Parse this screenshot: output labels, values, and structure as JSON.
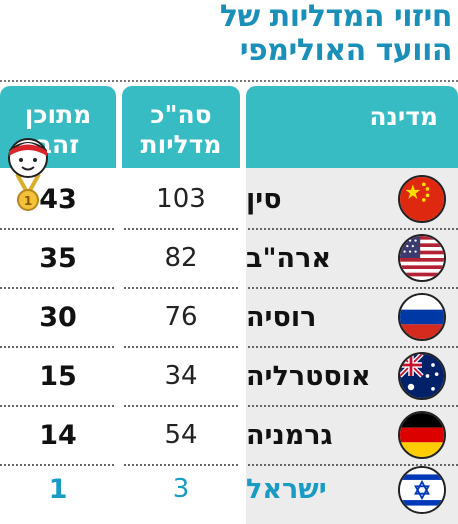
{
  "title": {
    "line1": "חיזוי המדליות של",
    "line2": "הוועד האולימפי"
  },
  "headers": {
    "country": "מדינה",
    "total_line1": "סה\"כ",
    "total_line2": "מדליות",
    "gold_line1": "מתוכן",
    "gold_line2": "זהב"
  },
  "rows": [
    {
      "country": "סין",
      "total": "103",
      "gold": "43",
      "flag": "china-flag"
    },
    {
      "country": "ארה\"ב",
      "total": "82",
      "gold": "35",
      "flag": "usa-flag"
    },
    {
      "country": "רוסיה",
      "total": "76",
      "gold": "30",
      "flag": "russia-flag"
    },
    {
      "country": "אוסטרליה",
      "total": "34",
      "gold": "15",
      "flag": "australia-flag"
    },
    {
      "country": "גרמניה",
      "total": "54",
      "gold": "14",
      "flag": "germany-flag"
    },
    {
      "country": "ישראל",
      "total": "3",
      "gold": "1",
      "flag": "israel-flag"
    }
  ],
  "medal_badge_text": "1",
  "colors": {
    "header_bg": "#37bcc4",
    "title": "#1a8fb7",
    "highlight": "#1a9bc4",
    "country_column_bg": "#ececec"
  }
}
